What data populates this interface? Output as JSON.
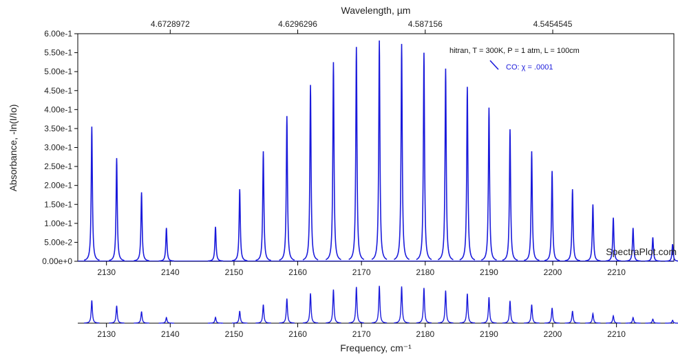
{
  "chart_data": {
    "type": "line",
    "title": "",
    "xlabel": "Frequency, cm⁻¹",
    "x2label": "Wavelength, µm",
    "ylabel": "Absorbance, -ln(I/Io)",
    "xlim": [
      2125.5,
      2219
    ],
    "ylim": [
      0,
      0.6
    ],
    "x_ticks": [
      2130,
      2140,
      2150,
      2160,
      2170,
      2180,
      2190,
      2200,
      2210
    ],
    "x_tick_labels": [
      "2130",
      "2140",
      "2150",
      "2160",
      "2170",
      "2180",
      "2190",
      "2200",
      "2210"
    ],
    "y_ticks": [
      0,
      0.05,
      0.1,
      0.15,
      0.2,
      0.25,
      0.3,
      0.35,
      0.4,
      0.45,
      0.5,
      0.55,
      0.6
    ],
    "y_tick_labels": [
      "0.00e+0",
      "5.00e-2",
      "1.00e-1",
      "1.50e-1",
      "2.00e-1",
      "2.50e-1",
      "3.00e-1",
      "3.50e-1",
      "4.00e-1",
      "4.50e-1",
      "5.00e-1",
      "5.50e-1",
      "6.00e-1"
    ],
    "x2_ticks": [
      2140,
      2160,
      2180,
      2200
    ],
    "x2_tick_labels": [
      "4.6728972",
      "4.6296296",
      "4.587156",
      "4.5454545"
    ],
    "annotation": "hitran, T = 300K, P = 1 atm, L = 100cm",
    "watermark": "SpectraPlot.com",
    "grid": false,
    "legend_position": "top-right",
    "series": [
      {
        "name": "CO: χ = .0001",
        "color": "#1a1adb",
        "peaks": [
          {
            "x": 2127.7,
            "y": 0.355
          },
          {
            "x": 2131.6,
            "y": 0.272
          },
          {
            "x": 2135.5,
            "y": 0.182
          },
          {
            "x": 2139.4,
            "y": 0.088
          },
          {
            "x": 2147.1,
            "y": 0.091
          },
          {
            "x": 2150.9,
            "y": 0.19
          },
          {
            "x": 2154.6,
            "y": 0.29
          },
          {
            "x": 2158.3,
            "y": 0.383
          },
          {
            "x": 2162.0,
            "y": 0.465
          },
          {
            "x": 2165.6,
            "y": 0.525
          },
          {
            "x": 2169.2,
            "y": 0.565
          },
          {
            "x": 2172.8,
            "y": 0.582
          },
          {
            "x": 2176.3,
            "y": 0.573
          },
          {
            "x": 2179.8,
            "y": 0.55
          },
          {
            "x": 2183.2,
            "y": 0.508
          },
          {
            "x": 2186.6,
            "y": 0.46
          },
          {
            "x": 2190.0,
            "y": 0.405
          },
          {
            "x": 2193.3,
            "y": 0.348
          },
          {
            "x": 2196.7,
            "y": 0.29
          },
          {
            "x": 2199.9,
            "y": 0.238
          },
          {
            "x": 2203.1,
            "y": 0.19
          },
          {
            "x": 2206.3,
            "y": 0.15
          },
          {
            "x": 2209.5,
            "y": 0.115
          },
          {
            "x": 2212.6,
            "y": 0.088
          },
          {
            "x": 2215.7,
            "y": 0.063
          },
          {
            "x": 2218.8,
            "y": 0.045
          }
        ]
      }
    ],
    "overview": {
      "type": "line",
      "xlim": [
        2125.5,
        2219
      ],
      "x_ticks": [
        2130,
        2140,
        2150,
        2160,
        2170,
        2180,
        2190,
        2200,
        2210
      ],
      "x_tick_labels": [
        "2130",
        "2140",
        "2150",
        "2160",
        "2170",
        "2180",
        "2190",
        "2200",
        "2210"
      ]
    }
  }
}
